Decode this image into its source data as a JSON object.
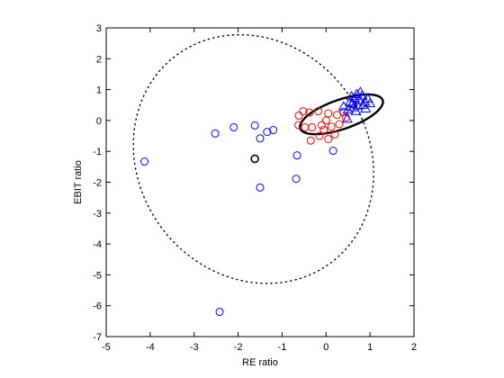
{
  "chart_data": {
    "type": "scatter",
    "title": "",
    "xlabel": "RE ratio",
    "ylabel": "EBIT ratio",
    "xlim": [
      -5,
      2
    ],
    "ylim": [
      -7,
      3
    ],
    "xticks": [
      -5,
      -4,
      -3,
      -2,
      -1,
      0,
      1,
      2
    ],
    "yticks": [
      -7,
      -6,
      -5,
      -4,
      -3,
      -2,
      -1,
      0,
      1,
      2,
      3
    ],
    "grid": false,
    "legend": "none",
    "colors": {
      "blue": "#0000ff",
      "red": "#ff0000",
      "black": "#000000"
    },
    "series": [
      {
        "marker": "circle",
        "color": "blue",
        "points": [
          [
            -4.13,
            -1.33
          ],
          [
            -2.52,
            -0.42
          ],
          [
            -2.1,
            -0.22
          ],
          [
            -1.62,
            -0.16
          ],
          [
            -1.5,
            -0.58
          ],
          [
            -1.34,
            -0.37
          ],
          [
            -1.2,
            -0.31
          ],
          [
            -0.66,
            -1.13
          ],
          [
            -0.68,
            -1.89
          ],
          [
            -1.5,
            -2.17
          ],
          [
            -2.42,
            -6.2
          ],
          [
            0.16,
            -0.98
          ],
          [
            0.4,
            0.28
          ],
          [
            0.62,
            0.52
          ]
        ]
      },
      {
        "marker": "circle",
        "color": "red",
        "points": [
          [
            -0.62,
            0.16
          ],
          [
            -0.52,
            0.3
          ],
          [
            -0.38,
            0.26
          ],
          [
            -0.18,
            0.3
          ],
          [
            0.05,
            0.23
          ],
          [
            0.25,
            0.18
          ],
          [
            -0.63,
            -0.15
          ],
          [
            -0.48,
            -0.22
          ],
          [
            -0.32,
            -0.22
          ],
          [
            -0.1,
            -0.15
          ],
          [
            0.12,
            -0.2
          ],
          [
            0.3,
            -0.12
          ],
          [
            -0.35,
            -0.65
          ],
          [
            -0.15,
            -0.5
          ],
          [
            0.05,
            -0.6
          ],
          [
            0.2,
            -0.45
          ],
          [
            -0.05,
            -0.3
          ],
          [
            0.45,
            0.1
          ],
          [
            0.0,
            0.0
          ]
        ]
      },
      {
        "marker": "triangle",
        "color": "blue",
        "points": [
          [
            0.5,
            0.35
          ],
          [
            0.6,
            0.55
          ],
          [
            0.65,
            0.72
          ],
          [
            0.7,
            0.85
          ],
          [
            0.75,
            0.65
          ],
          [
            0.82,
            0.8
          ],
          [
            0.88,
            0.6
          ],
          [
            0.95,
            0.7
          ],
          [
            0.72,
            0.48
          ],
          [
            0.55,
            0.6
          ],
          [
            0.62,
            0.42
          ],
          [
            0.85,
            0.5
          ],
          [
            1.0,
            0.55
          ],
          [
            0.78,
            0.92
          ],
          [
            0.68,
            0.3
          ],
          [
            0.48,
            0.05
          ],
          [
            0.9,
            0.38
          ],
          [
            0.4,
            0.45
          ],
          [
            0.58,
            0.78
          ]
        ]
      },
      {
        "marker": "circle",
        "color": "black",
        "points": [
          [
            -1.62,
            -1.24
          ]
        ]
      }
    ],
    "ellipses": [
      {
        "style": "dotted",
        "color": "black",
        "center": [
          -1.65,
          -1.25
        ],
        "semi_axes": [
          2.7,
          4.05
        ],
        "angle_deg": 8
      },
      {
        "style": "solid",
        "color": "black",
        "center": [
          0.35,
          0.2
        ],
        "semi_axes": [
          1.05,
          0.45
        ],
        "angle_deg": 29
      }
    ]
  }
}
